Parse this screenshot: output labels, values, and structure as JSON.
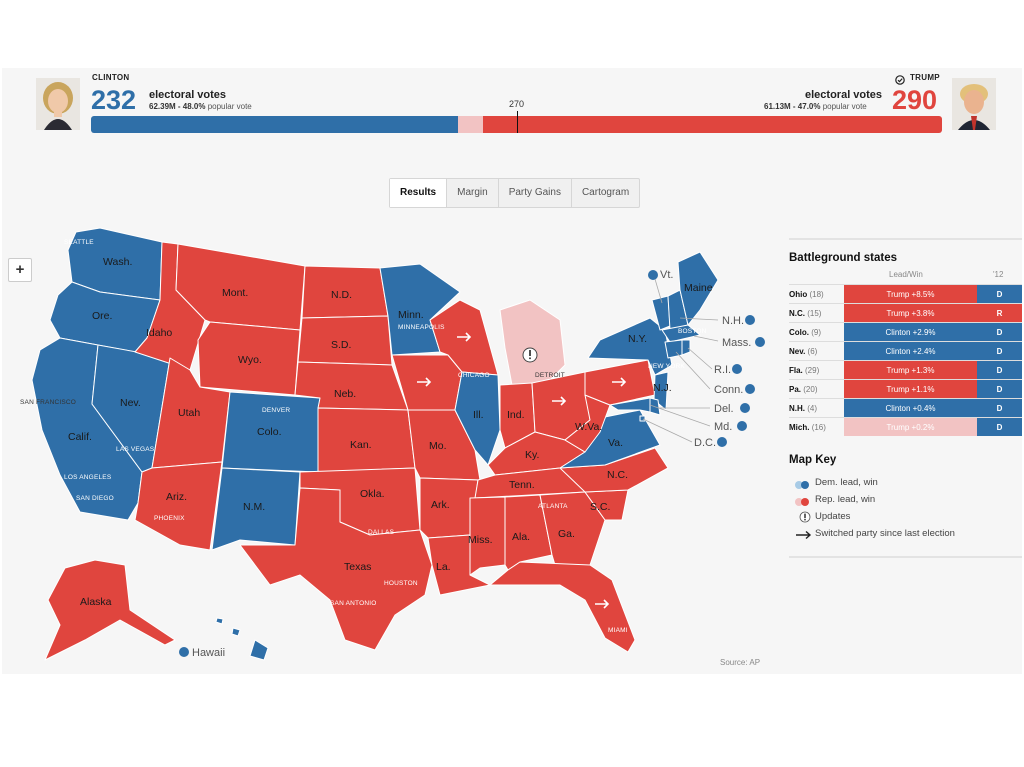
{
  "colors": {
    "dem": "#2f6fa8",
    "dem_light": "#a8cbe6",
    "rep": "#e0453e",
    "rep_light": "#f2c3c3",
    "border": "#ffffff"
  },
  "header": {
    "left": {
      "name": "CLINTON",
      "electoral_votes": "232",
      "ev_label": "electoral votes",
      "popular_strong": "62.39M - 48.0%",
      "popular_rest": " popular vote"
    },
    "right": {
      "name": "TRUMP",
      "winner_icon": "check-circle-icon",
      "electoral_votes": "290",
      "ev_label": "electoral votes",
      "popular_strong": "61.13M - 47.0%",
      "popular_rest": " popular vote"
    },
    "threshold_label": "270",
    "bar": {
      "total": 538,
      "dem": 232,
      "dem_leading_extra": 0,
      "rep_leading": 16,
      "rep": 290
    }
  },
  "tabs": [
    "Results",
    "Margin",
    "Party Gains",
    "Cartogram"
  ],
  "zoom_label": "+",
  "map": {
    "states": {
      "wash": {
        "label": "Wash.",
        "party": "dem"
      },
      "ore": {
        "label": "Ore.",
        "party": "dem"
      },
      "calif": {
        "label": "Calif.",
        "party": "dem"
      },
      "nev": {
        "label": "Nev.",
        "party": "dem"
      },
      "idaho": {
        "label": "Idaho",
        "party": "rep"
      },
      "mont": {
        "label": "Mont.",
        "party": "rep"
      },
      "wyo": {
        "label": "Wyo.",
        "party": "rep"
      },
      "utah": {
        "label": "Utah",
        "party": "rep"
      },
      "ariz": {
        "label": "Ariz.",
        "party": "rep"
      },
      "colo": {
        "label": "Colo.",
        "party": "dem"
      },
      "nm": {
        "label": "N.M.",
        "party": "dem"
      },
      "nd": {
        "label": "N.D.",
        "party": "rep"
      },
      "sd": {
        "label": "S.D.",
        "party": "rep"
      },
      "neb": {
        "label": "Neb.",
        "party": "rep"
      },
      "kan": {
        "label": "Kan.",
        "party": "rep"
      },
      "okla": {
        "label": "Okla.",
        "party": "rep"
      },
      "texas": {
        "label": "Texas",
        "party": "rep"
      },
      "minn": {
        "label": "Minn.",
        "party": "dem"
      },
      "iowa": {
        "label": "",
        "party": "rep",
        "switched": true
      },
      "mo": {
        "label": "Mo.",
        "party": "rep"
      },
      "ark": {
        "label": "Ark.",
        "party": "rep"
      },
      "la": {
        "label": "La.",
        "party": "rep"
      },
      "wis": {
        "label": "",
        "party": "rep",
        "switched": true
      },
      "ill": {
        "label": "Ill.",
        "party": "dem"
      },
      "mich": {
        "label": "",
        "party": "rep_light",
        "update": true
      },
      "ind": {
        "label": "Ind.",
        "party": "rep"
      },
      "ohio": {
        "label": "",
        "party": "rep",
        "switched": true
      },
      "ky": {
        "label": "Ky.",
        "party": "rep"
      },
      "tenn": {
        "label": "Tenn.",
        "party": "rep"
      },
      "miss": {
        "label": "Miss.",
        "party": "rep"
      },
      "ala": {
        "label": "Ala.",
        "party": "rep"
      },
      "ga": {
        "label": "Ga.",
        "party": "rep"
      },
      "fla": {
        "label": "",
        "party": "rep",
        "switched": true
      },
      "sc": {
        "label": "S.C.",
        "party": "rep"
      },
      "nc": {
        "label": "N.C.",
        "party": "rep"
      },
      "va": {
        "label": "Va.",
        "party": "dem"
      },
      "wva": {
        "label": "W.Va.",
        "party": "rep"
      },
      "pa": {
        "label": "",
        "party": "rep",
        "switched": true
      },
      "ny": {
        "label": "N.Y.",
        "party": "dem"
      },
      "nj": {
        "label": "N.J.",
        "party": "dem"
      },
      "maine": {
        "label": "Maine",
        "party": "dem"
      },
      "vt": {
        "label": "Vt.",
        "party": "dem"
      },
      "nh": {
        "label": "N.H.",
        "party": "dem"
      },
      "mass": {
        "label": "Mass.",
        "party": "dem"
      },
      "ri": {
        "label": "R.I.",
        "party": "dem"
      },
      "conn": {
        "label": "Conn.",
        "party": "dem"
      },
      "del": {
        "label": "Del.",
        "party": "dem"
      },
      "md": {
        "label": "Md.",
        "party": "dem"
      },
      "dc": {
        "label": "D.C.",
        "party": "dem"
      },
      "alaska": {
        "label": "Alaska",
        "party": "rep"
      },
      "hawaii": {
        "label": "Hawaii",
        "party": "dem"
      }
    },
    "cities": [
      "SEATTLE",
      "SAN FRANCISCO",
      "LAS VEGAS",
      "LOS ANGELES",
      "SAN DIEGO",
      "PHOENIX",
      "DENVER",
      "MINNEAPOLIS",
      "CHICAGO",
      "DETROIT",
      "BOSTON",
      "NEW YORK",
      "DALLAS",
      "HOUSTON",
      "SAN ANTONIO",
      "ATLANTA",
      "MIAMI"
    ]
  },
  "battleground": {
    "title": "Battleground states",
    "col_lead": "Lead/Win",
    "col_prev": "'12",
    "rows": [
      {
        "state": "Ohio",
        "ev": "(18)",
        "lead": "Trump +8.5%",
        "lead_party": "rep",
        "prev": "D"
      },
      {
        "state": "N.C.",
        "ev": "(15)",
        "lead": "Trump +3.8%",
        "lead_party": "rep",
        "prev": "R"
      },
      {
        "state": "Colo.",
        "ev": "(9)",
        "lead": "Clinton +2.9%",
        "lead_party": "dem",
        "prev": "D"
      },
      {
        "state": "Nev.",
        "ev": "(6)",
        "lead": "Clinton +2.4%",
        "lead_party": "dem",
        "prev": "D"
      },
      {
        "state": "Fla.",
        "ev": "(29)",
        "lead": "Trump +1.3%",
        "lead_party": "rep",
        "prev": "D"
      },
      {
        "state": "Pa.",
        "ev": "(20)",
        "lead": "Trump +1.1%",
        "lead_party": "rep",
        "prev": "D"
      },
      {
        "state": "N.H.",
        "ev": "(4)",
        "lead": "Clinton +0.4%",
        "lead_party": "dem",
        "prev": "D"
      },
      {
        "state": "Mich.",
        "ev": "(16)",
        "lead": "Trump +0.2%",
        "lead_party": "rep_light",
        "prev": "D"
      }
    ]
  },
  "map_key": {
    "title": "Map Key",
    "items": [
      {
        "label": "Dem. lead, win",
        "symbol": "dem-dots"
      },
      {
        "label": "Rep. lead, win",
        "symbol": "rep-dots"
      },
      {
        "label": "Updates",
        "symbol": "alert-icon"
      },
      {
        "label": "Switched party since last election",
        "symbol": "arrow-icon"
      }
    ]
  },
  "source": "Source: AP"
}
